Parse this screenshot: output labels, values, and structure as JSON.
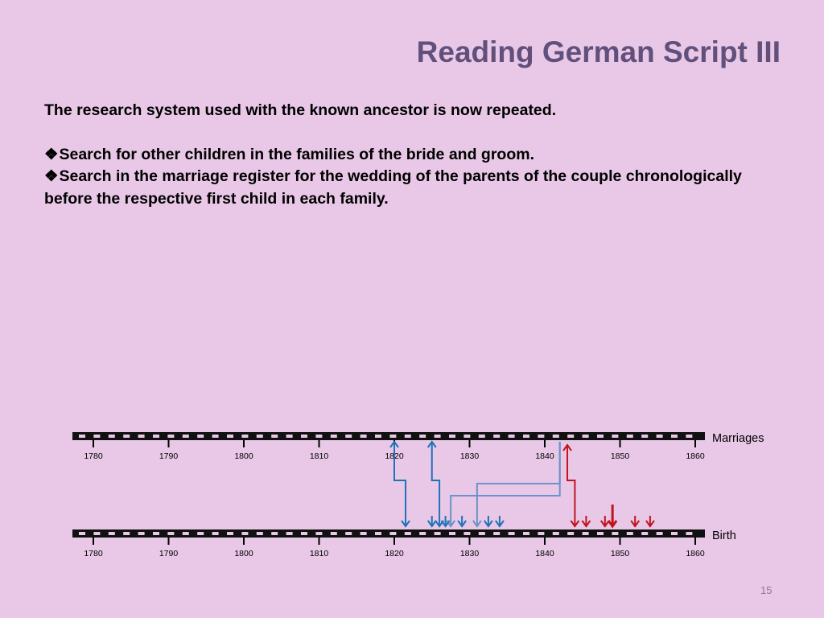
{
  "slide": {
    "title": "Reading German Script III",
    "intro": "The research system used with the known ancestor is now repeated.",
    "bullet_symbol": "❖",
    "bullets": [
      "Search for other children in the families of the bride and groom.",
      "Search in the marriage register for the wedding of the parents of the couple chronologically before the respective first child in each family."
    ],
    "page_number": "15"
  },
  "timeline": {
    "years": [
      "1780",
      "1790",
      "1800",
      "1810",
      "1820",
      "1830",
      "1840",
      "1850",
      "1860"
    ],
    "lanes": [
      {
        "name": "Marriages"
      },
      {
        "name": "Birth"
      }
    ],
    "colors": {
      "blue": "#1f72b8",
      "light_blue": "#6a93c8",
      "red": "#c0141e",
      "bar_dark": "#111111",
      "bar_light": "#e8c8e6"
    },
    "birth_arrows_blue": [
      1821.5,
      1825,
      1826.8,
      1829,
      1832.5,
      1834
    ],
    "birth_arrows_red": [
      1845.5,
      1848,
      1852,
      1854
    ],
    "marriage_links_blue": [
      {
        "marriage_year": 1820,
        "birth_year": 1821.5
      },
      {
        "marriage_year": 1825,
        "birth_year": 1826
      }
    ],
    "marriage_links_light_blue": [
      {
        "marriage_year": 1842,
        "birth_year": 1827.5
      },
      {
        "marriage_year": 1842,
        "birth_year": 1831
      }
    ],
    "marriage_links_red": [
      {
        "marriage_year": 1843,
        "birth_year": 1844
      }
    ],
    "red_thick_arrow_year": 1849
  }
}
